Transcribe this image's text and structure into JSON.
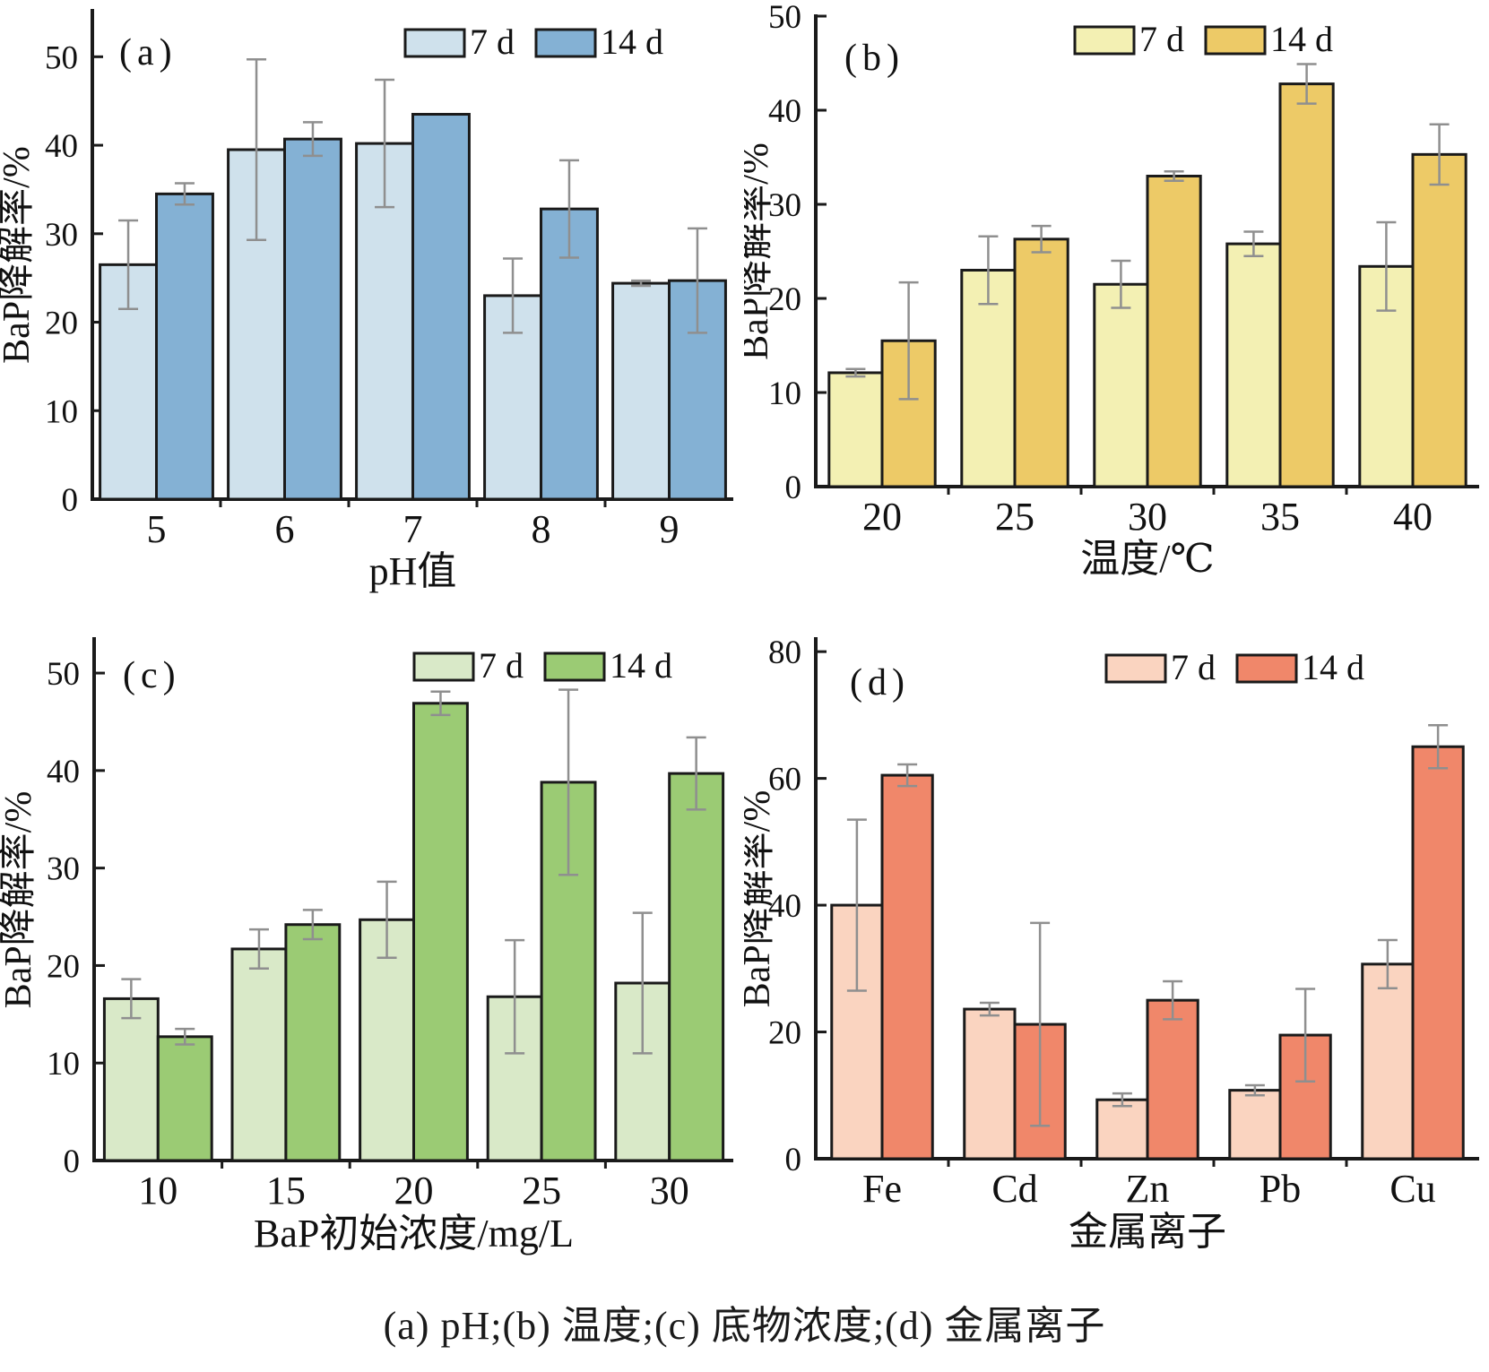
{
  "caption": "(a) pH;(b) 温度;(c) 底物浓度;(d) 金属离子",
  "styles": {
    "axis_color": "#1a1a1a",
    "bar_border_color": "#1a1a1a",
    "error_bar_color": "#8f8f8f",
    "text_color": "#111111",
    "background": "#ffffff"
  },
  "chart_data": [
    {
      "type": "bar",
      "panel_label": "(a)",
      "title": "",
      "xlabel": "pH值",
      "ylabel": "BaP降解率/%",
      "ylim": [
        0,
        55.2
      ],
      "yticks": [
        0,
        10,
        20,
        30,
        40,
        50
      ],
      "grid": false,
      "legend_position": "top-right",
      "categories": [
        "5",
        "6",
        "7",
        "8",
        "9"
      ],
      "colors": [
        "#cfe1ec",
        "#84b1d4"
      ],
      "series": [
        {
          "name": "7 d",
          "values": [
            26.5,
            39.5,
            40.2,
            23.0,
            24.4
          ],
          "errors": [
            5.0,
            10.2,
            7.2,
            4.2,
            0.3
          ]
        },
        {
          "name": "14 d",
          "values": [
            34.5,
            40.7,
            43.5,
            32.8,
            24.7
          ],
          "errors": [
            1.2,
            1.9,
            0,
            5.5,
            5.9
          ]
        }
      ]
    },
    {
      "type": "bar",
      "panel_label": "(b)",
      "title": "",
      "xlabel": "温度/℃",
      "ylabel": "BaP降解率/%",
      "ylim": [
        0,
        50
      ],
      "yticks": [
        0,
        10,
        20,
        30,
        40,
        50
      ],
      "grid": false,
      "legend_position": "top-right",
      "categories": [
        "20",
        "25",
        "30",
        "35",
        "40"
      ],
      "colors": [
        "#f3f0b3",
        "#edca67"
      ],
      "series": [
        {
          "name": "7 d",
          "values": [
            12.1,
            23.0,
            21.5,
            25.8,
            23.4
          ],
          "errors": [
            0.4,
            3.6,
            2.5,
            1.3,
            4.7
          ]
        },
        {
          "name": "14 d",
          "values": [
            15.5,
            26.3,
            33.0,
            42.8,
            35.3
          ],
          "errors": [
            6.2,
            1.4,
            0.5,
            2.1,
            3.2
          ]
        }
      ]
    },
    {
      "type": "bar",
      "panel_label": "(c)",
      "title": "",
      "xlabel": "BaP初始浓度/mg/L",
      "ylabel": "BaP降解率/%",
      "ylim": [
        0,
        53.5
      ],
      "yticks": [
        0,
        10,
        20,
        30,
        40,
        50
      ],
      "grid": false,
      "legend_position": "top-right",
      "categories": [
        "10",
        "15",
        "20",
        "25",
        "30"
      ],
      "colors": [
        "#d9e9c8",
        "#9bcb74"
      ],
      "series": [
        {
          "name": "7 d",
          "values": [
            16.6,
            21.7,
            24.7,
            16.8,
            18.2
          ],
          "errors": [
            2.0,
            2.0,
            3.9,
            5.8,
            7.2
          ]
        },
        {
          "name": "14 d",
          "values": [
            12.7,
            24.2,
            46.9,
            38.8,
            39.7
          ],
          "errors": [
            0.8,
            1.5,
            1.2,
            9.5,
            3.7
          ]
        }
      ]
    },
    {
      "type": "bar",
      "panel_label": "(d)",
      "title": "",
      "xlabel": "金属离子",
      "ylabel": "BaP降解率/%",
      "ylim": [
        0,
        82
      ],
      "yticks": [
        0,
        20,
        40,
        60,
        80
      ],
      "grid": false,
      "legend_position": "top-right",
      "categories": [
        "Fe",
        "Cd",
        "Zn",
        "Pb",
        "Cu"
      ],
      "colors": [
        "#fad4c0",
        "#f0876a"
      ],
      "series": [
        {
          "name": "7 d",
          "values": [
            40.0,
            23.6,
            9.3,
            10.8,
            30.7
          ],
          "errors": [
            13.5,
            1.0,
            1.0,
            0.8,
            3.8
          ]
        },
        {
          "name": "14 d",
          "values": [
            60.5,
            21.2,
            25.0,
            19.5,
            65.0
          ],
          "errors": [
            1.7,
            16.0,
            3.0,
            7.3,
            3.4
          ]
        }
      ]
    }
  ]
}
